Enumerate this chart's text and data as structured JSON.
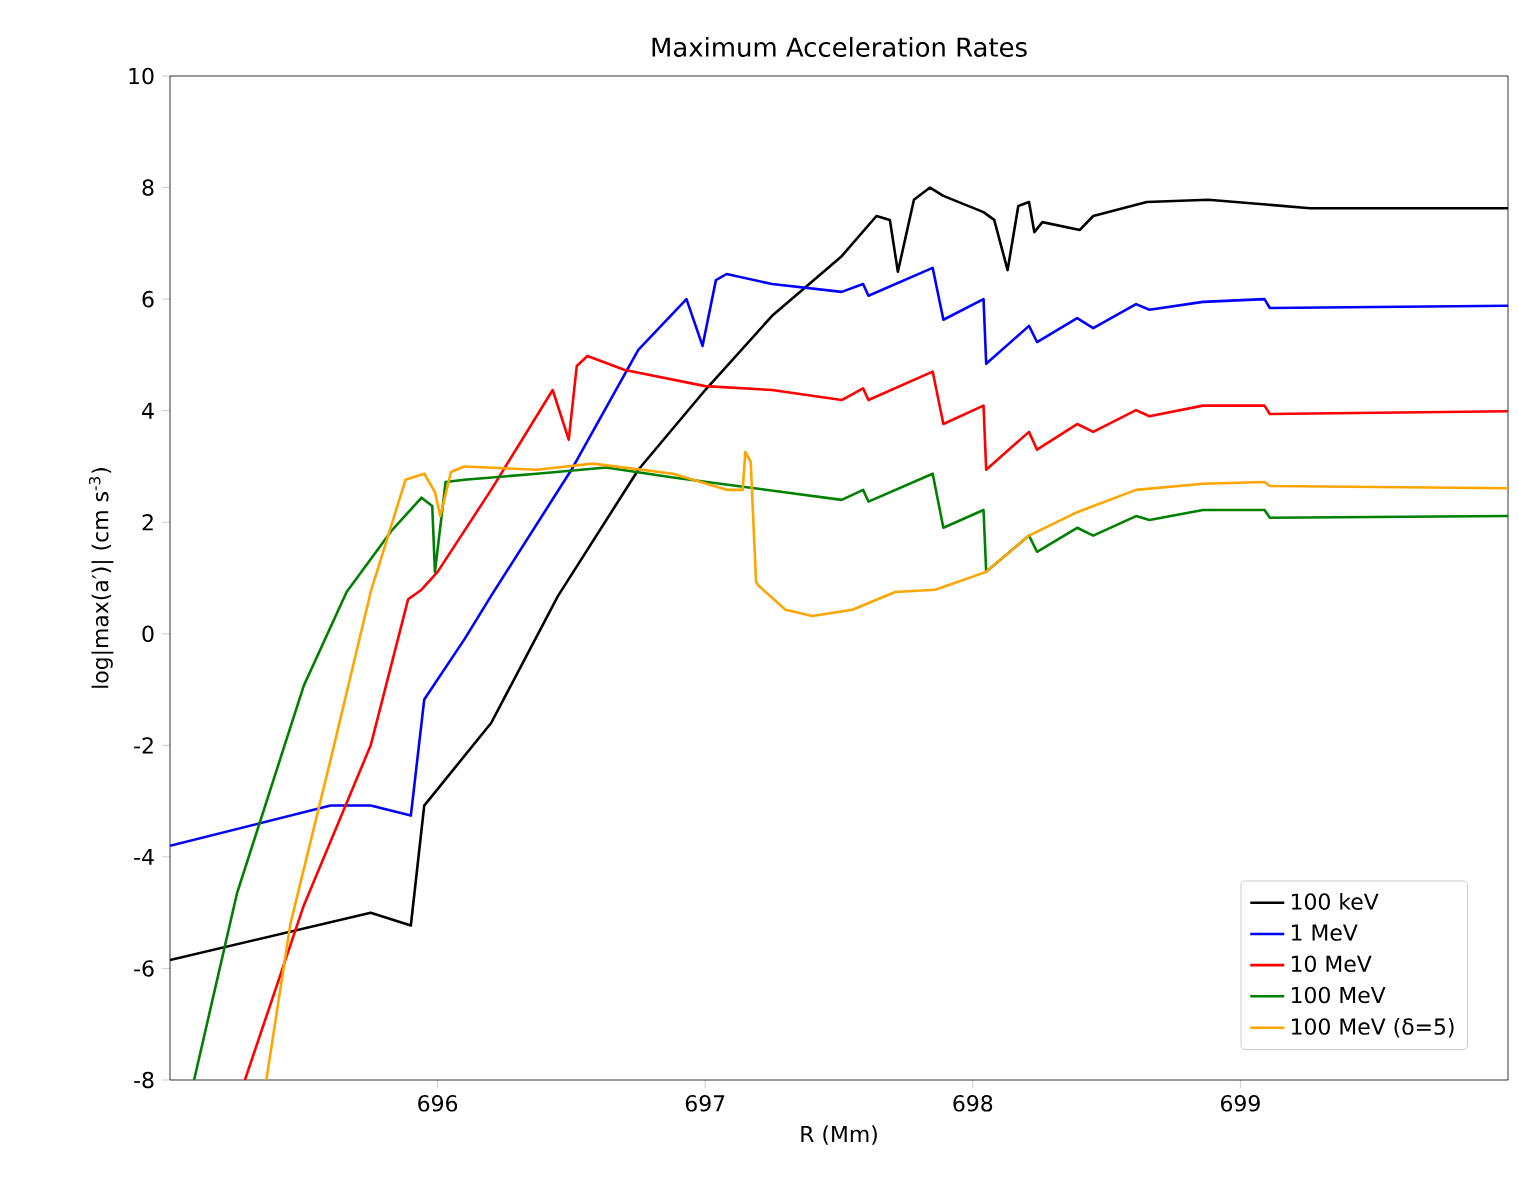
{
  "chart_data": {
    "type": "line",
    "title": "Maximum Acceleration Rates",
    "xlabel": "R (Mm)",
    "ylabel": "log|max(a′)| (cm s$^{-3}$)",
    "xlim": [
      695,
      700
    ],
    "ylim": [
      -8,
      10
    ],
    "xticks": [
      696,
      697,
      698,
      699
    ],
    "yticks": [
      -8,
      -6,
      -4,
      -2,
      0,
      2,
      4,
      6,
      8,
      10
    ],
    "legend": "bottom right",
    "grid": false,
    "series": [
      {
        "name": "100 keV",
        "color": "#000000",
        "x": [
          695.0,
          695.75,
          695.9,
          695.95,
          696.2,
          696.45,
          696.75,
          697.0,
          697.25,
          697.51,
          697.64,
          697.69,
          697.72,
          697.78,
          697.84,
          697.89,
          698.04,
          698.08,
          698.13,
          698.17,
          698.21,
          698.23,
          698.26,
          698.4,
          698.45,
          698.65,
          698.88,
          699.26,
          700.0
        ],
        "values": [
          -5.85,
          -5.0,
          -5.23,
          -3.08,
          -1.6,
          0.68,
          2.94,
          4.37,
          5.7,
          6.77,
          7.49,
          7.42,
          6.49,
          7.78,
          8.0,
          7.85,
          7.56,
          7.42,
          6.52,
          7.67,
          7.74,
          7.2,
          7.38,
          7.24,
          7.49,
          7.74,
          7.78,
          7.63,
          7.63
        ]
      },
      {
        "name": "1 MeV",
        "color": "#0000ff",
        "x": [
          695.0,
          695.6,
          695.75,
          695.9,
          695.95,
          696.1,
          696.2,
          696.5,
          696.75,
          696.93,
          696.99,
          697.04,
          697.08,
          697.25,
          697.51,
          697.59,
          697.61,
          697.85,
          697.89,
          698.04,
          698.05,
          698.21,
          698.24,
          698.39,
          698.45,
          698.61,
          698.66,
          698.86,
          699.09,
          699.11,
          700.0
        ],
        "values": [
          -3.8,
          -3.08,
          -3.08,
          -3.26,
          -1.18,
          -0.1,
          0.68,
          2.94,
          5.09,
          6.0,
          5.16,
          6.34,
          6.45,
          6.27,
          6.13,
          6.27,
          6.06,
          6.56,
          5.63,
          6.0,
          4.84,
          5.52,
          5.23,
          5.66,
          5.48,
          5.91,
          5.81,
          5.95,
          6.0,
          5.84,
          5.88
        ]
      },
      {
        "name": "10 MeV",
        "color": "#ff0000",
        "x": [
          695.28,
          695.5,
          695.75,
          695.89,
          695.94,
          696.0,
          696.2,
          696.43,
          696.49,
          696.52,
          696.56,
          696.7,
          697.0,
          697.25,
          697.51,
          697.59,
          697.61,
          697.85,
          697.89,
          698.04,
          698.05,
          698.21,
          698.24,
          698.39,
          698.45,
          698.61,
          698.66,
          698.86,
          699.09,
          699.11,
          700.0
        ],
        "values": [
          -8,
          -4.87,
          -2.0,
          0.62,
          0.79,
          1.11,
          2.58,
          4.37,
          3.48,
          4.8,
          4.98,
          4.73,
          4.44,
          4.37,
          4.19,
          4.4,
          4.19,
          4.7,
          3.76,
          4.09,
          2.94,
          3.62,
          3.3,
          3.76,
          3.62,
          4.01,
          3.9,
          4.09,
          4.09,
          3.94,
          3.99
        ]
      },
      {
        "name": "100 MeV",
        "color": "#008000",
        "x": [
          695.09,
          695.25,
          695.5,
          695.66,
          695.83,
          695.94,
          695.98,
          695.99,
          696.03,
          696.1,
          696.37,
          696.63,
          696.88,
          697.12,
          697.51,
          697.59,
          697.61,
          697.85,
          697.89,
          698.04,
          698.05,
          698.21,
          698.24,
          698.39,
          698.45,
          698.61,
          698.66,
          698.86,
          699.09,
          699.11,
          700.0
        ],
        "values": [
          -8,
          -4.66,
          -0.93,
          0.75,
          1.86,
          2.44,
          2.29,
          1.11,
          2.72,
          2.76,
          2.87,
          2.98,
          2.8,
          2.65,
          2.4,
          2.58,
          2.37,
          2.87,
          1.9,
          2.22,
          1.11,
          1.76,
          1.47,
          1.9,
          1.76,
          2.11,
          2.04,
          2.22,
          2.22,
          2.08,
          2.11
        ]
      },
      {
        "name": "100 MeV (δ=5)",
        "color": "#ffa500",
        "x": [
          695.36,
          695.45,
          695.6,
          695.75,
          695.88,
          695.95,
          695.99,
          696.01,
          696.05,
          696.1,
          696.37,
          696.58,
          696.88,
          697.08,
          697.14,
          697.15,
          697.17,
          697.19,
          697.2,
          697.3,
          697.4,
          697.55,
          697.71,
          697.86,
          698.05,
          698.21,
          698.39,
          698.61,
          698.86,
          699.09,
          699.11,
          700.0
        ],
        "values": [
          -8,
          -5.2,
          -2.26,
          0.75,
          2.76,
          2.87,
          2.54,
          2.11,
          2.9,
          3.0,
          2.94,
          3.05,
          2.87,
          2.58,
          2.58,
          3.26,
          3.08,
          0.93,
          0.86,
          0.43,
          0.32,
          0.43,
          0.75,
          0.79,
          1.11,
          1.76,
          2.18,
          2.58,
          2.69,
          2.72,
          2.65,
          2.61
        ]
      }
    ]
  }
}
